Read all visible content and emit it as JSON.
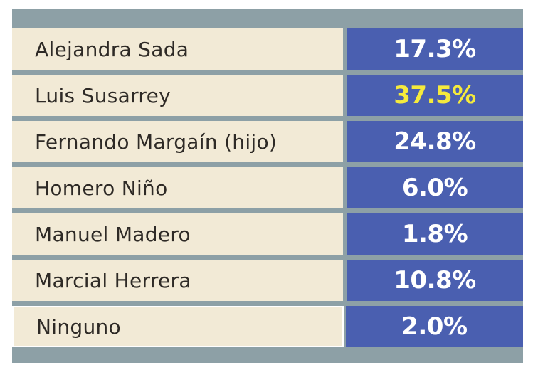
{
  "chart_data": {
    "type": "table",
    "title": "",
    "rows": [
      {
        "name": "Alejandra Sada",
        "value": "17.3%",
        "highlight": false
      },
      {
        "name": "Luis Susarrey",
        "value": "37.5%",
        "highlight": true
      },
      {
        "name": "Fernando Margaín (hijo)",
        "value": "24.8%",
        "highlight": false
      },
      {
        "name": "Homero Niño",
        "value": "6.0%",
        "highlight": false
      },
      {
        "name": "Manuel Madero",
        "value": "1.8%",
        "highlight": false
      },
      {
        "name": "Marcial Herrera",
        "value": "10.8%",
        "highlight": false
      },
      {
        "name": "Ninguno",
        "value": "2.0%",
        "highlight": false
      }
    ],
    "values": [
      17.3,
      37.5,
      24.8,
      6.0,
      1.8,
      10.8,
      2.0
    ],
    "colors": {
      "frame": "#8da0a6",
      "name_background": "#f2ead6",
      "value_background": "#4a5fb0",
      "value_text": "#ffffff",
      "highlight_text": "#f5ea3c"
    }
  }
}
